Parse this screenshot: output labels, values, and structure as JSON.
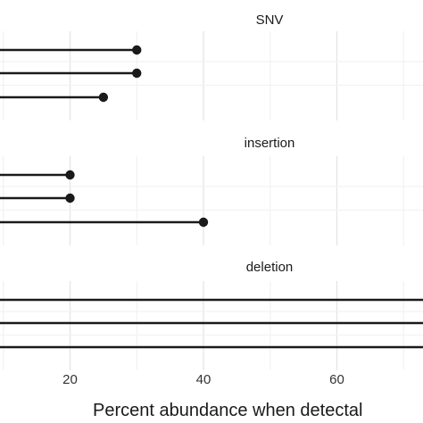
{
  "chart_data": {
    "type": "lollipop",
    "facets": [
      {
        "label": "SNV",
        "values": [
          30,
          30,
          25
        ]
      },
      {
        "label": "insertion",
        "values": [
          20,
          20,
          40
        ]
      },
      {
        "label": "deletion",
        "values": [
          100,
          100,
          100
        ]
      }
    ],
    "x_ticks": [
      20,
      40,
      60
    ],
    "xlabel": "Percent abundance when detectal",
    "xlim": [
      0,
      100
    ],
    "grid": true,
    "colors": {
      "mark": "#1a1a1a",
      "grid": "#e6e6e6"
    }
  }
}
